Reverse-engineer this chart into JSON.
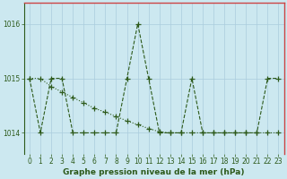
{
  "x": [
    0,
    1,
    2,
    3,
    4,
    5,
    6,
    7,
    8,
    9,
    10,
    11,
    12,
    13,
    14,
    15,
    16,
    17,
    18,
    19,
    20,
    21,
    22,
    23
  ],
  "line1": [
    1015.0,
    1014.0,
    1015.0,
    1015.0,
    1014.0,
    1014.0,
    1014.0,
    1014.0,
    1014.0,
    1015.0,
    1016.0,
    1015.0,
    1014.0,
    1014.0,
    1014.0,
    1015.0,
    1014.0,
    1014.0,
    1014.0,
    1014.0,
    1014.0,
    1014.0,
    1015.0,
    1015.0
  ],
  "line2": [
    1015.0,
    1015.0,
    1014.85,
    1014.75,
    1014.65,
    1014.55,
    1014.45,
    1014.38,
    1014.3,
    1014.22,
    1014.15,
    1014.08,
    1014.02,
    1014.0,
    1014.0,
    1014.0,
    1014.0,
    1014.0,
    1014.0,
    1014.0,
    1014.0,
    1014.0,
    1014.0,
    1014.0
  ],
  "line_color": "#2d5a1b",
  "bg_color": "#cce8f0",
  "grid_color": "#aaccdd",
  "border_color": "#cc4444",
  "tick_label_color": "#2d5a1b",
  "xlabel": "Graphe pression niveau de la mer (hPa)",
  "ylim": [
    1013.62,
    1016.38
  ],
  "yticks": [
    1014,
    1015,
    1016
  ],
  "xticks": [
    0,
    1,
    2,
    3,
    4,
    5,
    6,
    7,
    8,
    9,
    10,
    11,
    12,
    13,
    14,
    15,
    16,
    17,
    18,
    19,
    20,
    21,
    22,
    23
  ],
  "xlabel_fontsize": 6.5,
  "tick_fontsize": 5.5
}
